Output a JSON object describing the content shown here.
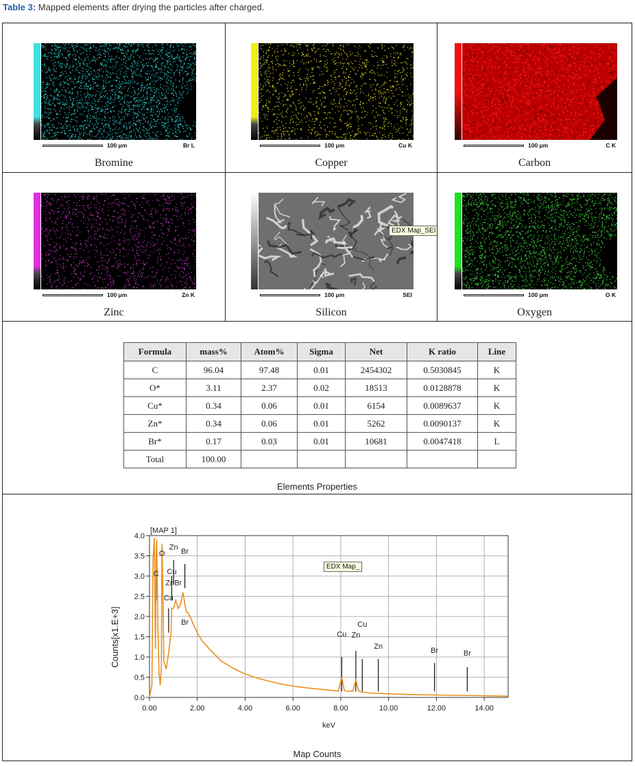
{
  "caption": {
    "label": "Table 3:",
    "text": "Mapped elements after drying the particles after charged."
  },
  "maps": [
    {
      "name": "Bromine",
      "element_tag": "Br L",
      "scale": "100 μm",
      "color": "#2ed3d6",
      "bar_color": "#3ee0e0",
      "kind": "dots"
    },
    {
      "name": "Copper",
      "element_tag": "Cu K",
      "scale": "100 μm",
      "color": "#e2e02a",
      "bar_color": "#f0ee14",
      "kind": "dots"
    },
    {
      "name": "Carbon",
      "element_tag": "C K",
      "scale": "100 μm",
      "color": "#e8130f",
      "bar_color": "#f01010",
      "kind": "dense"
    },
    {
      "name": "Zinc",
      "element_tag": "Zn K",
      "scale": "100 μm",
      "color": "#c43cc4",
      "bar_color": "#e030e0",
      "kind": "dots"
    },
    {
      "name": "Silicon",
      "element_tag": "SEI",
      "scale": "100 μm",
      "color": "#8a8a8a",
      "bar_color": "#999999",
      "kind": "sem",
      "tooltip": "EDX Map_SEI"
    },
    {
      "name": "Oxygen",
      "element_tag": "O K",
      "scale": "100 μm",
      "color": "#3ed23e",
      "bar_color": "#22e022",
      "kind": "dots"
    }
  ],
  "table": {
    "headers": [
      "Formula",
      "mass%",
      "Atom%",
      "Sigma",
      "Net",
      "K ratio",
      "Line"
    ],
    "rows": [
      [
        "C",
        "96.04",
        "97.48",
        "0.01",
        "2454302",
        "0.5030845",
        "K"
      ],
      [
        "O*",
        "3.11",
        "2.37",
        "0.02",
        "18513",
        "0.0128878",
        "K"
      ],
      [
        "Cu*",
        "0.34",
        "0.06",
        "0.01",
        "6154",
        "0.0089637",
        "K"
      ],
      [
        "Zn*",
        "0.34",
        "0.06",
        "0.01",
        "5262",
        "0.0090137",
        "K"
      ],
      [
        "Br*",
        "0.17",
        "0.03",
        "0.01",
        "10681",
        "0.0047418",
        "L"
      ],
      [
        "Total",
        "100.00",
        "",
        "",
        "",
        "",
        ""
      ]
    ],
    "caption": "Elements Properties"
  },
  "chart_data": {
    "type": "line",
    "title": "[MAP 1]",
    "xlabel": "keV",
    "ylabel": "Counts[x1.E+3]",
    "xlim": [
      0,
      15
    ],
    "ylim": [
      0,
      4.0
    ],
    "xticks": [
      "0.00",
      "2.00",
      "4.00",
      "6.00",
      "8.00",
      "10.00",
      "12.00",
      "14.00"
    ],
    "yticks": [
      "0.0",
      "0.5",
      "1.0",
      "1.5",
      "2.0",
      "2.5",
      "3.0",
      "3.5",
      "4.0"
    ],
    "grid": true,
    "series_color": "#e8901e",
    "x": [
      0.0,
      0.1,
      0.15,
      0.2,
      0.25,
      0.28,
      0.3,
      0.35,
      0.4,
      0.45,
      0.5,
      0.52,
      0.55,
      0.6,
      0.7,
      0.8,
      0.9,
      0.93,
      1.0,
      1.1,
      1.2,
      1.3,
      1.4,
      1.48,
      1.55,
      1.6,
      1.7,
      1.8,
      2.0,
      2.2,
      2.5,
      3.0,
      3.5,
      4.0,
      4.5,
      5.0,
      5.5,
      6.0,
      6.5,
      7.0,
      7.5,
      7.9,
      8.04,
      8.15,
      8.3,
      8.5,
      8.63,
      8.75,
      8.9,
      9.2,
      9.6,
      10.0,
      11.0,
      12.0,
      13.0,
      14.0,
      15.0
    ],
    "y": [
      0.0,
      0.3,
      3.4,
      3.95,
      1.2,
      3.6,
      3.9,
      1.8,
      0.6,
      0.3,
      0.8,
      3.8,
      3.0,
      0.9,
      0.7,
      1.1,
      1.6,
      2.2,
      2.2,
      2.4,
      2.2,
      2.3,
      2.6,
      2.3,
      2.1,
      2.1,
      2.0,
      1.85,
      1.6,
      1.4,
      1.2,
      0.9,
      0.72,
      0.58,
      0.48,
      0.4,
      0.33,
      0.28,
      0.24,
      0.21,
      0.18,
      0.16,
      0.5,
      0.17,
      0.15,
      0.16,
      0.42,
      0.16,
      0.13,
      0.11,
      0.1,
      0.09,
      0.07,
      0.06,
      0.05,
      0.04,
      0.03
    ],
    "peak_labels": [
      {
        "label": "O",
        "x": 0.52,
        "y": 3.5
      },
      {
        "label": "Zn",
        "x": 1.01,
        "y": 3.65
      },
      {
        "label": "Br",
        "x": 1.48,
        "y": 3.55
      },
      {
        "label": "C",
        "x": 0.28,
        "y": 3.0
      },
      {
        "label": "Cu",
        "x": 0.93,
        "y": 3.05
      },
      {
        "label": "Zn",
        "x": 0.85,
        "y": 2.77
      },
      {
        "label": "Br",
        "x": 1.2,
        "y": 2.77
      },
      {
        "label": "Cu",
        "x": 0.8,
        "y": 2.4
      },
      {
        "label": "Br",
        "x": 1.48,
        "y": 1.8
      },
      {
        "label": "Cu",
        "x": 8.04,
        "y": 1.5
      },
      {
        "label": "Zn",
        "x": 8.63,
        "y": 1.48
      },
      {
        "label": "Cu",
        "x": 8.9,
        "y": 1.75
      },
      {
        "label": "Zn",
        "x": 9.57,
        "y": 1.2
      },
      {
        "label": "Br",
        "x": 11.92,
        "y": 1.1
      },
      {
        "label": "Br",
        "x": 13.29,
        "y": 1.03
      }
    ],
    "marker_lines": [
      {
        "x": 0.28,
        "ytop": 3.0
      },
      {
        "x": 0.52,
        "ytop": 3.4
      },
      {
        "x": 0.93,
        "ytop": 3.0
      },
      {
        "x": 1.01,
        "ytop": 3.4
      },
      {
        "x": 1.48,
        "ytop": 3.3
      },
      {
        "x": 0.8,
        "ytop": 2.2
      },
      {
        "x": 8.04,
        "ytop": 1.0
      },
      {
        "x": 8.63,
        "ytop": 1.15
      },
      {
        "x": 8.9,
        "ytop": 0.95
      },
      {
        "x": 9.57,
        "ytop": 0.95
      },
      {
        "x": 11.92,
        "ytop": 0.85
      },
      {
        "x": 13.29,
        "ytop": 0.75
      }
    ],
    "tooltip": "EDX Map_",
    "caption": "Map Counts"
  }
}
